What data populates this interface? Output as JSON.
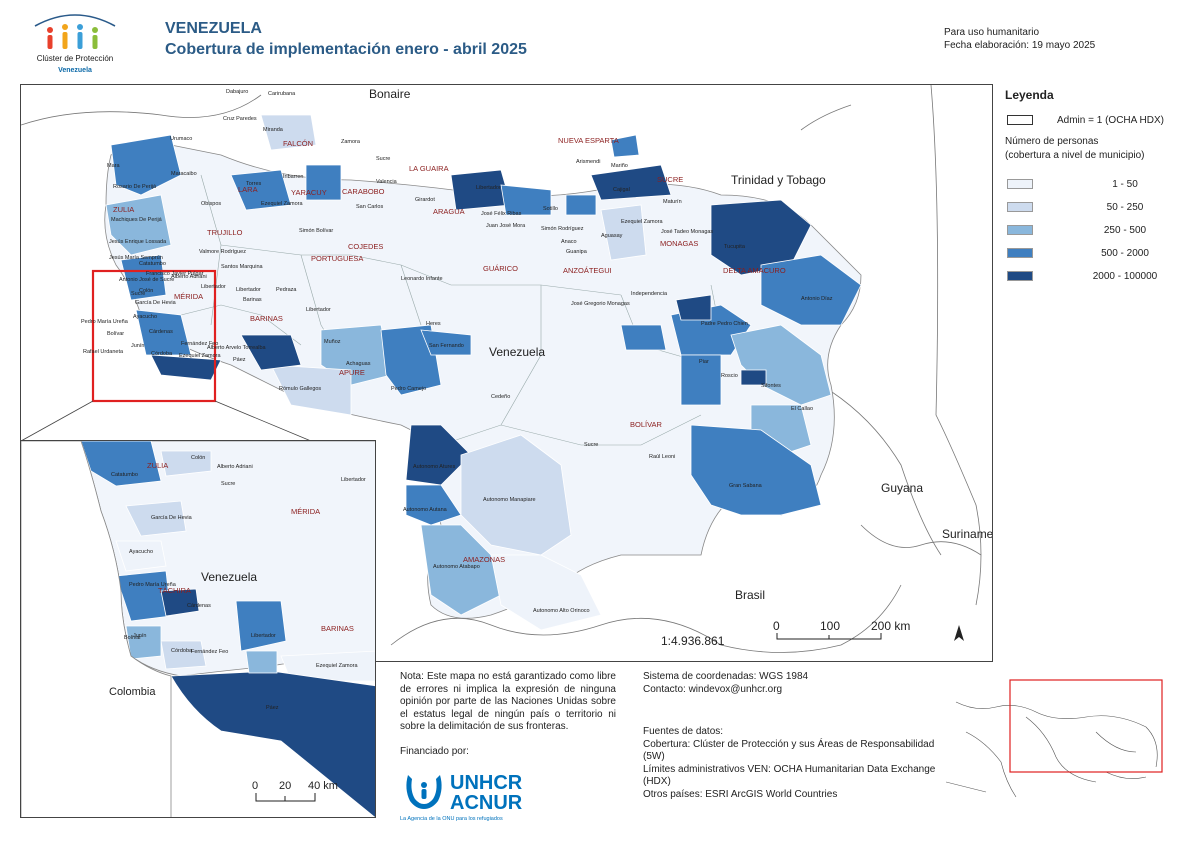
{
  "header": {
    "logo_line1": "Clúster de Protección",
    "logo_line2": "Venezuela",
    "country": "VENEZUELA",
    "title": "Cobertura de implementación enero - abril 2025",
    "use": "Para uso humanitario",
    "date": "Fecha elaboración: 19 mayo 2025"
  },
  "legend": {
    "title": "Leyenda",
    "admin_label": "Admin = 1 (OCHA HDX)",
    "persons_label": "Número de personas",
    "persons_sub": "(cobertura a nivel de municipio)",
    "classes": [
      {
        "label": "1 - 50",
        "color": "#eef3fa"
      },
      {
        "label": "50 - 250",
        "color": "#cddbee"
      },
      {
        "label": "250 - 500",
        "color": "#8ab7dc"
      },
      {
        "label": "500 - 2000",
        "color": "#3f7fc0"
      },
      {
        "label": "2000 - 100000",
        "color": "#1f4a84"
      }
    ]
  },
  "map_labels": {
    "countries": {
      "bonaire": "Bonaire",
      "trinidad": "Trinidad y Tobago",
      "venezuela": "Venezuela",
      "guyana": "Guyana",
      "suriname": "Suriname",
      "brasil": "Brasil"
    },
    "states": {
      "falcon": "FALCÓN",
      "nueva_esparta": "NUEVA ESPARTA",
      "la_guaira": "LA GUAIRA",
      "sucre": "SUCRE",
      "lara": "LARA",
      "yaracuy": "YARACUY",
      "carabobo": "CARABOBO",
      "aragua": "ARAGUA",
      "zulia": "ZULIA",
      "trujillo": "TRUJILLO",
      "cojedes": "COJEDES",
      "portuguesa": "PORTUGUESA",
      "guarico": "GUÁRICO",
      "anzoategui": "ANZOÁTEGUI",
      "monagas": "MONAGAS",
      "delta_amacuro": "DELTA AMACURO",
      "merida": "MÉRIDA",
      "barinas": "BARINAS",
      "apure": "APURE",
      "bolivar": "BOLÍVAR",
      "amazonas": "AMAZONAS"
    },
    "municipalities": {
      "tucupita": "Tucupita",
      "casacoima": "Antonio Díaz",
      "sifontes": "Sifontes",
      "gran_sabana": "Gran Sabana",
      "padre_pedro_chien": "Padre Pedro Chien",
      "roscio": "Roscio",
      "el_callao": "El Callao",
      "piar": "Piar",
      "heres": "Heres",
      "cedeno": "Cedeño",
      "sucre_bol": "Sucre",
      "raul_leoni": "Raúl Leoni",
      "independencia": "Independencia",
      "atures": "Autonomo Atures",
      "manapiare": "Autonomo Manapiare",
      "atabapo": "Autonomo Atabapo",
      "autana": "Autonomo Autana",
      "alto_orinoco": "Autonomo Alto Orinoco",
      "achaguas": "Achaguas",
      "pedro_camejo": "Pedro Camejo",
      "romulo_gallegos": "Rómulo Gallegos",
      "san_fernando": "San Fernando",
      "muñoz": "Muñoz",
      "paez": "Páez",
      "pedraza": "Pedraza",
      "barinas_m": "Barinas",
      "libertador": "Libertador",
      "jose_gregorio_monagas": "José Gregorio Monagas",
      "leonardo_infante": "Leonardo Infante",
      "sotillo": "Sotillo",
      "maturin": "Maturín",
      "la_ceiba": "Ezequiel Zamora",
      "torres": "Torres",
      "iribarren": "Iribarren",
      "mara": "Mara",
      "maracaibo": "Maracaibo",
      "jesus_enrique_lossada": "Jesús Enrique Lossada",
      "rosario_de_perija": "Rosario De Perijá",
      "machiques": "Machiques De Perijá",
      "catatumbo": "Catatumbo",
      "jesus_maria_semprun": "Jesús María Semprún",
      "garcia_de_hevia": "García De Hevia",
      "ayacucho": "Ayacucho",
      "bolivar_t": "Bolívar",
      "rafael_urdaneta": "Rafael Urdaneta",
      "pedro_maria_ureña": "Pedro María Ureña",
      "cardenas": "Cárdenas",
      "cordoba": "Córdoba",
      "fernandez_feo": "Fernández Feo",
      "junin": "Junín",
      "ezequiel_zamora_b": "Ezequiel Zamora",
      "alberto_arvelo": "Alberto Arvelo Torrealba",
      "antonio_jose_sucre": "Antonio José de Sucre",
      "sucre_z": "Sucre",
      "colon": "Colón",
      "francisco_javier_pulgar": "Francisco Javier Pulgar",
      "alberto_adriani": "Alberto Adriani",
      "santos_marquina": "Santos Marquina",
      "libertador_m": "Libertador",
      "obispo_ramos": "Obispos",
      "cruz_paredes": "Cruz Paredes",
      "miranda_f": "Miranda",
      "carirubana": "Carirubana",
      "dabajuro": "Dabajuro",
      "urumaco": "Urumaco",
      "sucre_f": "Sucre",
      "zamora_f": "Zamora",
      "valmore_rodriguez": "Valmore Rodríguez",
      "simon_bolivar": "Simón Bolívar",
      "cajigal": "Cajigal",
      "arismendi": "Arismendi",
      "mariño": "Mariño",
      "libertador_c": "Libertador",
      "valencia": "Valencia",
      "girardot": "Girardot",
      "san_carlos": "San Carlos",
      "anaco": "Anaco",
      "simon_rodriguez": "Simón Rodríguez",
      "guanipa": "Guanipa",
      "jose_felix_ribas": "José Félix Ribas",
      "leonardo_infante_g": "Juan José Mora",
      "aguasay": "Aguasay",
      "ezequiel_zamora_m": "Ezequiel Zamora",
      "jose_tadeo": "José Tadeo Monagas",
      "libertador_ap": "Libertador"
    }
  },
  "scale": {
    "ratio": "1:4.936.861",
    "main_ticks": [
      "0",
      "100",
      "200 km"
    ],
    "inset_ticks": [
      "0",
      "20",
      "40 km"
    ]
  },
  "inset_labels": {
    "venezuela": "Venezuela",
    "colombia": "Colombia",
    "zulia": "ZULIA",
    "merida": "MÉRIDA",
    "tachira": "TÁCHIRA",
    "barinas": "BARINAS",
    "alberto_adriani": "Alberto Adriani",
    "sucre_z": "Sucre",
    "colon": "Colón",
    "garcia": "García De Hevia",
    "ayacucho": "Ayacucho",
    "bolivar": "Bolívar",
    "libertador": "Libertador",
    "cordoba": "Córdoba",
    "paez": "Páez",
    "ezequiel": "Ezequiel Zamora",
    "pedro_maria": "Pedro María Ureña",
    "junin": "Junín",
    "cardenas": "Cárdenas",
    "fernandez": "Fernández Feo",
    "catatumbo": "Catatumbo",
    "libertador_m": "Libertador"
  },
  "note": "Nota: Este mapa no está garantizado como libre de errores ni implica la expresión de ninguna opinión por parte de las Naciones Unidas sobre el estatus legal de ningún país o territorio ni sobre la delimitación de sus fronteras.",
  "funded": "Financiado por:",
  "unhcr": {
    "line1": "UNHCR",
    "line2": "ACNUR",
    "tagline": "La Agencia de la ONU para los refugiados"
  },
  "coords": {
    "system": "Sistema de coordenadas: WGS 1984",
    "contact": "Contacto: windevox@unhcr.org"
  },
  "sources": {
    "title": "Fuentes de datos:",
    "coverage": "Cobertura: Clúster de Protección y sus Áreas de Responsabilidad (5W)",
    "admin": "Límites administrativos VEN: OCHA Humanitarian Data Exchange (HDX)",
    "others": "Otros países: ESRI ArcGIS World Countries"
  },
  "colors": {
    "title": "#2b5b86",
    "border": "#444444",
    "state_label": "#8b1e1e",
    "highlight": "#e02020"
  }
}
